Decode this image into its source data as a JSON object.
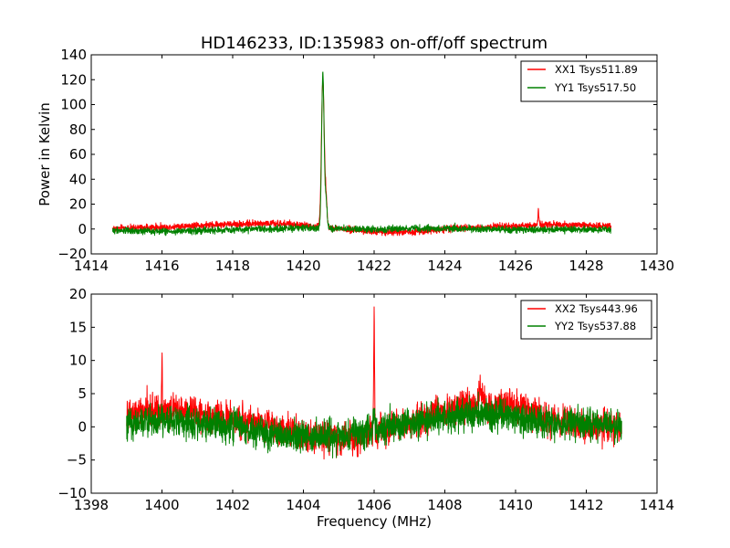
{
  "chart_data": [
    {
      "type": "line",
      "title": "HD146233, ID:135983 on-off/off spectrum",
      "xlabel": "",
      "ylabel": "Power in Kelvin",
      "xlim": [
        1414,
        1430
      ],
      "ylim": [
        -20,
        140
      ],
      "xticks": [
        1414,
        1416,
        1418,
        1420,
        1422,
        1424,
        1426,
        1428,
        1430
      ],
      "yticks": [
        -20,
        0,
        20,
        40,
        60,
        80,
        100,
        120,
        140
      ],
      "legend_position": "top-right",
      "grid": false,
      "series": [
        {
          "name": "XX1 Tsys511.89",
          "color": "#ff0000",
          "x_range": [
            1414.6,
            1428.7
          ],
          "noise": 1.3,
          "baseline": [
            [
              1414.6,
              0.5
            ],
            [
              1416,
              1.5
            ],
            [
              1418,
              4
            ],
            [
              1419,
              4.5
            ],
            [
              1420,
              3
            ],
            [
              1421,
              0
            ],
            [
              1422,
              -2
            ],
            [
              1423,
              -2.5
            ],
            [
              1424,
              0
            ],
            [
              1425,
              1.5
            ],
            [
              1426,
              2.5
            ],
            [
              1427,
              3.5
            ],
            [
              1428.7,
              2.5
            ]
          ],
          "peaks": [
            [
              1420.55,
              118,
              0.04
            ],
            [
              1420.64,
              22,
              0.03
            ],
            [
              1426.65,
              11,
              0.015
            ]
          ]
        },
        {
          "name": "YY1 Tsys517.50",
          "color": "#008000",
          "x_range": [
            1414.6,
            1428.7
          ],
          "noise": 1.3,
          "baseline": [
            [
              1414.6,
              -1
            ],
            [
              1416,
              -2
            ],
            [
              1417,
              -1.5
            ],
            [
              1418,
              -0.5
            ],
            [
              1419,
              0
            ],
            [
              1420,
              1
            ],
            [
              1421,
              0
            ],
            [
              1422,
              -0.5
            ],
            [
              1423,
              0.5
            ],
            [
              1424,
              0.5
            ],
            [
              1425,
              0
            ],
            [
              1426,
              -0.5
            ],
            [
              1427,
              -0.5
            ],
            [
              1428.7,
              -0.5
            ]
          ],
          "peaks": [
            [
              1420.55,
              124,
              0.035
            ],
            [
              1420.64,
              22,
              0.03
            ]
          ]
        }
      ]
    },
    {
      "type": "line",
      "title": "",
      "xlabel": "Frequency (MHz)",
      "ylabel": "",
      "xlim": [
        1398,
        1414
      ],
      "ylim": [
        -10,
        20
      ],
      "xticks": [
        1398,
        1400,
        1402,
        1404,
        1406,
        1408,
        1410,
        1412,
        1414
      ],
      "yticks": [
        -10,
        -5,
        0,
        5,
        10,
        15,
        20
      ],
      "legend_position": "top-right",
      "grid": false,
      "series": [
        {
          "name": "XX2 Tsys443.96",
          "color": "#ff0000",
          "x_range": [
            1399,
            1413
          ],
          "noise": 1.2,
          "baseline": [
            [
              1399,
              1.5
            ],
            [
              1400,
              2.5
            ],
            [
              1401,
              2
            ],
            [
              1402,
              1
            ],
            [
              1403,
              0.5
            ],
            [
              1404,
              -1
            ],
            [
              1405,
              -2
            ],
            [
              1406,
              -1
            ],
            [
              1407,
              0.5
            ],
            [
              1408,
              2.5
            ],
            [
              1409,
              3.5
            ],
            [
              1410,
              3
            ],
            [
              1411,
              1
            ],
            [
              1412,
              0
            ],
            [
              1413,
              0
            ]
          ],
          "peaks": [
            [
              1400.0,
              7.5,
              0.012
            ],
            [
              1406.0,
              17,
              0.012
            ],
            [
              1409.0,
              3,
              0.02
            ]
          ]
        },
        {
          "name": "YY2 Tsys537.88",
          "color": "#008000",
          "x_range": [
            1399,
            1413
          ],
          "noise": 1.2,
          "baseline": [
            [
              1399,
              0.5
            ],
            [
              1400,
              1
            ],
            [
              1401,
              0.5
            ],
            [
              1402,
              0
            ],
            [
              1403,
              -1
            ],
            [
              1404,
              -1.5
            ],
            [
              1405,
              -1.5
            ],
            [
              1406,
              -0.5
            ],
            [
              1407,
              0.5
            ],
            [
              1408,
              1.5
            ],
            [
              1409,
              2
            ],
            [
              1410,
              1.5
            ],
            [
              1411,
              0.5
            ],
            [
              1412,
              0.5
            ],
            [
              1413,
              0
            ]
          ],
          "peaks": [
            [
              1406.0,
              3,
              0.012
            ]
          ]
        }
      ]
    }
  ]
}
